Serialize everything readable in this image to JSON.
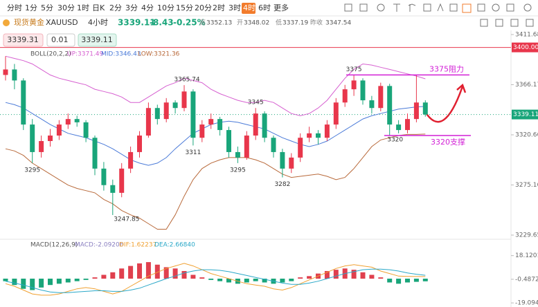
{
  "toolbar": {
    "periods": [
      "分时",
      "1分",
      "5分",
      "30分",
      "1时",
      "日K",
      "2分",
      "3分",
      "4分",
      "10分",
      "15分",
      "20分",
      "2时",
      "3时",
      "4时",
      "6时"
    ],
    "more": "更多"
  },
  "quote": {
    "name": "现货黄金",
    "symbol": "XAUUSD",
    "period": "4小时",
    "price": 3339.11,
    "change": -8.43,
    "change_pct": "-0.25%",
    "stats": [
      {
        "label": "高",
        "value": 3352.13
      },
      {
        "label": "开",
        "value": 3348.02
      },
      {
        "label": "低",
        "value": 3337.19
      },
      {
        "label": "昨收",
        "value": 3347.54
      }
    ]
  },
  "order": {
    "sell": 3339.31,
    "qty": 0.01,
    "buy": 3339.11
  },
  "chart_data": [
    {
      "type": "candlestick",
      "indicator": "BOLL(20,2,2)",
      "up_color": "#e8364b",
      "down_color": "#19a57a",
      "ylim": [
        3226.5,
        3414.8
      ],
      "yticks": [
        3411.68,
        3366.17,
        3320.66,
        3275.16,
        3229.65
      ],
      "price_line": {
        "value": 3400,
        "label": "3400.00",
        "color": "#e8364b"
      },
      "last": 3339.11,
      "ohlc": [
        [
          3375,
          3392,
          3370,
          3380
        ],
        [
          3380,
          3385,
          3362,
          3370
        ],
        [
          3370,
          3372,
          3325,
          3330
        ],
        [
          3330,
          3335,
          3295,
          3305
        ],
        [
          3305,
          3320,
          3300,
          3315
        ],
        [
          3315,
          3326,
          3310,
          3320
        ],
        [
          3320,
          3334,
          3316,
          3330
        ],
        [
          3330,
          3340,
          3326,
          3335
        ],
        [
          3335,
          3338,
          3328,
          3332
        ],
        [
          3332,
          3334,
          3314,
          3318
        ],
        [
          3318,
          3320,
          3284,
          3290
        ],
        [
          3290,
          3296,
          3270,
          3275
        ],
        [
          3275,
          3280,
          3247.85,
          3268
        ],
        [
          3268,
          3295,
          3264,
          3290
        ],
        [
          3290,
          3310,
          3286,
          3305
        ],
        [
          3305,
          3324,
          3300,
          3320
        ],
        [
          3320,
          3350,
          3318,
          3345
        ],
        [
          3345,
          3348,
          3330,
          3335
        ],
        [
          3335,
          3354,
          3332,
          3350
        ],
        [
          3350,
          3352,
          3340,
          3345
        ],
        [
          3345,
          3365.74,
          3342,
          3360
        ],
        [
          3360,
          3362,
          3311,
          3318
        ],
        [
          3318,
          3334,
          3314,
          3330
        ],
        [
          3330,
          3340,
          3326,
          3335
        ],
        [
          3335,
          3337,
          3320,
          3325
        ],
        [
          3325,
          3328,
          3300,
          3305
        ],
        [
          3305,
          3310,
          3295,
          3300
        ],
        [
          3300,
          3324,
          3298,
          3320
        ],
        [
          3320,
          3345,
          3316,
          3340
        ],
        [
          3340,
          3342,
          3314,
          3318
        ],
        [
          3318,
          3320,
          3300,
          3305
        ],
        [
          3305,
          3308,
          3282,
          3290
        ],
        [
          3290,
          3304,
          3286,
          3300
        ],
        [
          3300,
          3322,
          3296,
          3318
        ],
        [
          3318,
          3328,
          3314,
          3322
        ],
        [
          3322,
          3325,
          3312,
          3318
        ],
        [
          3318,
          3334,
          3315,
          3330
        ],
        [
          3330,
          3354,
          3326,
          3350
        ],
        [
          3350,
          3366,
          3346,
          3362
        ],
        [
          3362,
          3375,
          3356,
          3370
        ],
        [
          3370,
          3372,
          3348,
          3352
        ],
        [
          3352,
          3356,
          3340,
          3345
        ],
        [
          3345,
          3368,
          3342,
          3365
        ],
        [
          3365,
          3367,
          3320,
          3330
        ],
        [
          3330,
          3334,
          3322,
          3325
        ],
        [
          3325,
          3340,
          3322,
          3335
        ],
        [
          3335,
          3375,
          3332,
          3350
        ],
        [
          3350,
          3352,
          3337.19,
          3339.11
        ]
      ],
      "series": [
        {
          "name": "UP:3371.49",
          "color": "#d65fd0",
          "values": [
            3392,
            3390,
            3388,
            3385,
            3380,
            3375,
            3372,
            3370,
            3368,
            3366,
            3362,
            3360,
            3358,
            3355,
            3350,
            3350,
            3355,
            3360,
            3365,
            3368,
            3372,
            3370,
            3368,
            3362,
            3358,
            3355,
            3352,
            3350,
            3350,
            3352,
            3350,
            3345,
            3340,
            3338,
            3340,
            3345,
            3352,
            3362,
            3372,
            3380,
            3385,
            3384,
            3382,
            3380,
            3378,
            3376,
            3374,
            3371.49
          ]
        },
        {
          "name": "MID:3346.43",
          "color": "#4a7ad8",
          "values": [
            3350,
            3348,
            3345,
            3340,
            3335,
            3330,
            3326,
            3322,
            3320,
            3318,
            3315,
            3312,
            3308,
            3303,
            3298,
            3295,
            3293,
            3295,
            3300,
            3308,
            3315,
            3322,
            3326,
            3330,
            3332,
            3333,
            3332,
            3330,
            3328,
            3326,
            3322,
            3318,
            3315,
            3312,
            3310,
            3312,
            3315,
            3320,
            3325,
            3330,
            3335,
            3338,
            3340,
            3342,
            3344,
            3345,
            3346,
            3346.43
          ]
        },
        {
          "name": "LOW:3321.36",
          "color": "#b8693a",
          "values": [
            3308,
            3306,
            3302,
            3295,
            3290,
            3285,
            3280,
            3275,
            3272,
            3270,
            3268,
            3262,
            3258,
            3252,
            3248,
            3245,
            3240,
            3235,
            3235,
            3248,
            3265,
            3280,
            3290,
            3295,
            3298,
            3300,
            3300,
            3300,
            3298,
            3295,
            3290,
            3285,
            3282,
            3283,
            3284,
            3285,
            3283,
            3280,
            3282,
            3290,
            3300,
            3310,
            3316,
            3318,
            3320,
            3321,
            3321,
            3321.36
          ]
        }
      ],
      "price_labels": [
        "3375",
        "3365.74",
        "3345",
        "3311",
        "3295",
        "3295",
        "3282",
        "3247.85",
        "3320"
      ],
      "resistance": {
        "text": "3375阻力",
        "value": 3375,
        "color": "#d21fd6"
      },
      "support": {
        "text": "3320支撑",
        "value": 3320,
        "color": "#d21fd6"
      }
    },
    {
      "type": "macd",
      "indicator": "MACD(12,26,9)",
      "ylim": [
        -22.3,
        26.1
      ],
      "yticks": [
        {
          "value": 18.1201,
          "label": "18.12010"
        },
        {
          "value": -0.48725,
          "label": "-0.48725"
        },
        {
          "value": -19.0946,
          "label": "-19.09460"
        }
      ],
      "series": [
        {
          "name": "MACD:-2.09206",
          "color": "#e0404e",
          "down_color": "#19a57a",
          "values": [
            -2,
            -5,
            -8,
            -9,
            -7,
            -5,
            -4,
            -3,
            -2,
            -1,
            1,
            3,
            5,
            8,
            10,
            12,
            13,
            11,
            9,
            8,
            6,
            3,
            1,
            -1,
            -2,
            -3,
            -4,
            -3,
            -2,
            -3,
            -4,
            -3,
            -2,
            1,
            2,
            4,
            6,
            7,
            8,
            7,
            5,
            3,
            1,
            -3,
            -4,
            -3,
            -2.5,
            -2.09206
          ]
        },
        {
          "name": "DIF:1.62237",
          "color": "#f0a030",
          "values": [
            -4,
            -6,
            -9,
            -12,
            -13,
            -13,
            -12,
            -10,
            -8,
            -7,
            -8,
            -10,
            -12,
            -10,
            -6,
            -2,
            2,
            5,
            8,
            10,
            12,
            10,
            7,
            4,
            2,
            0,
            -2,
            -4,
            -5,
            -6,
            -8,
            -9,
            -7,
            -4,
            -1,
            2,
            5,
            8,
            10,
            11,
            10,
            9,
            6,
            4,
            2,
            1.8,
            1.7,
            1.62237
          ]
        },
        {
          "name": "DEA:2.66840",
          "color": "#2aa8c8",
          "values": [
            -2,
            -3.5,
            -5,
            -7,
            -9,
            -10.5,
            -11,
            -11,
            -10.5,
            -10,
            -9.5,
            -9.5,
            -10,
            -10,
            -9,
            -7.5,
            -5,
            -2.5,
            0,
            2,
            4.5,
            6,
            7,
            7,
            6.5,
            5.5,
            4,
            2.5,
            1,
            -0.5,
            -2,
            -3.5,
            -4.5,
            -4.5,
            -3.5,
            -2,
            0,
            2,
            4,
            5.5,
            7,
            7.5,
            7.5,
            7,
            6,
            4.5,
            3.5,
            2.6684
          ]
        }
      ]
    }
  ]
}
